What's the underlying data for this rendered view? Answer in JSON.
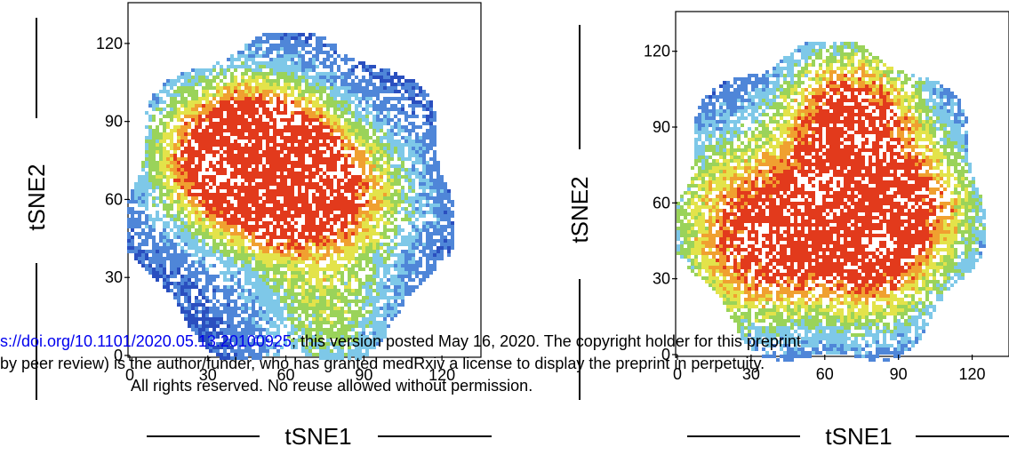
{
  "chart_data": [
    {
      "type": "heatmap",
      "xlabel": "tSNE1",
      "ylabel": "tSNE2",
      "xlim": [
        0,
        135
      ],
      "ylim": [
        0,
        135
      ],
      "xticks": [
        0,
        30,
        60,
        90,
        120
      ],
      "yticks": [
        0,
        30,
        60,
        90,
        120
      ],
      "x_tick_labels": [
        "0",
        "30",
        "60",
        "90",
        "120"
      ],
      "y_tick_labels": [
        "0",
        "30",
        "60",
        "90",
        "120"
      ],
      "hotspots": [
        {
          "x": 60,
          "y": 65,
          "intensity": 1.0
        },
        {
          "x": 48,
          "y": 82,
          "intensity": 0.85
        },
        {
          "x": 28,
          "y": 75,
          "intensity": 0.55
        },
        {
          "x": 88,
          "y": 62,
          "intensity": 0.45
        },
        {
          "x": 75,
          "y": 15,
          "intensity": 0.4
        }
      ],
      "colors": [
        "#2a4fbf",
        "#4f86d8",
        "#7ec8e8",
        "#9ad35a",
        "#e3e34a",
        "#f0a030",
        "#e23a1c"
      ]
    },
    {
      "type": "heatmap",
      "xlabel": "tSNE1",
      "ylabel": "tSNE2",
      "xlim": [
        0,
        135
      ],
      "ylim": [
        0,
        135
      ],
      "xticks": [
        0,
        30,
        60,
        90,
        120
      ],
      "yticks": [
        0,
        30,
        60,
        90,
        120
      ],
      "x_tick_labels": [
        "0",
        "30",
        "60",
        "90",
        "120"
      ],
      "y_tick_labels": [
        "0",
        "30",
        "60",
        "90",
        "120"
      ],
      "hotspots": [
        {
          "x": 70,
          "y": 95,
          "intensity": 0.95
        },
        {
          "x": 68,
          "y": 55,
          "intensity": 0.85
        },
        {
          "x": 30,
          "y": 35,
          "intensity": 0.65
        },
        {
          "x": 100,
          "y": 60,
          "intensity": 0.55
        },
        {
          "x": 22,
          "y": 65,
          "intensity": 0.5
        },
        {
          "x": 80,
          "y": 30,
          "intensity": 0.45
        }
      ],
      "colors": [
        "#2a4fbf",
        "#4f86d8",
        "#7ec8e8",
        "#9ad35a",
        "#e3e34a",
        "#f0a030",
        "#e23a1c"
      ]
    }
  ],
  "watermark": {
    "line1_link": "s://doi.org/10.1101/2020.05.13.20100925",
    "line1_rest": "; this version posted May 16, 2020. The copyright holder for this preprint",
    "line2": "by peer review) is the author/funder, who has granted medRxiv a license to display the preprint in perpetuity.",
    "line3": "All rights reserved. No reuse allowed without permission."
  }
}
